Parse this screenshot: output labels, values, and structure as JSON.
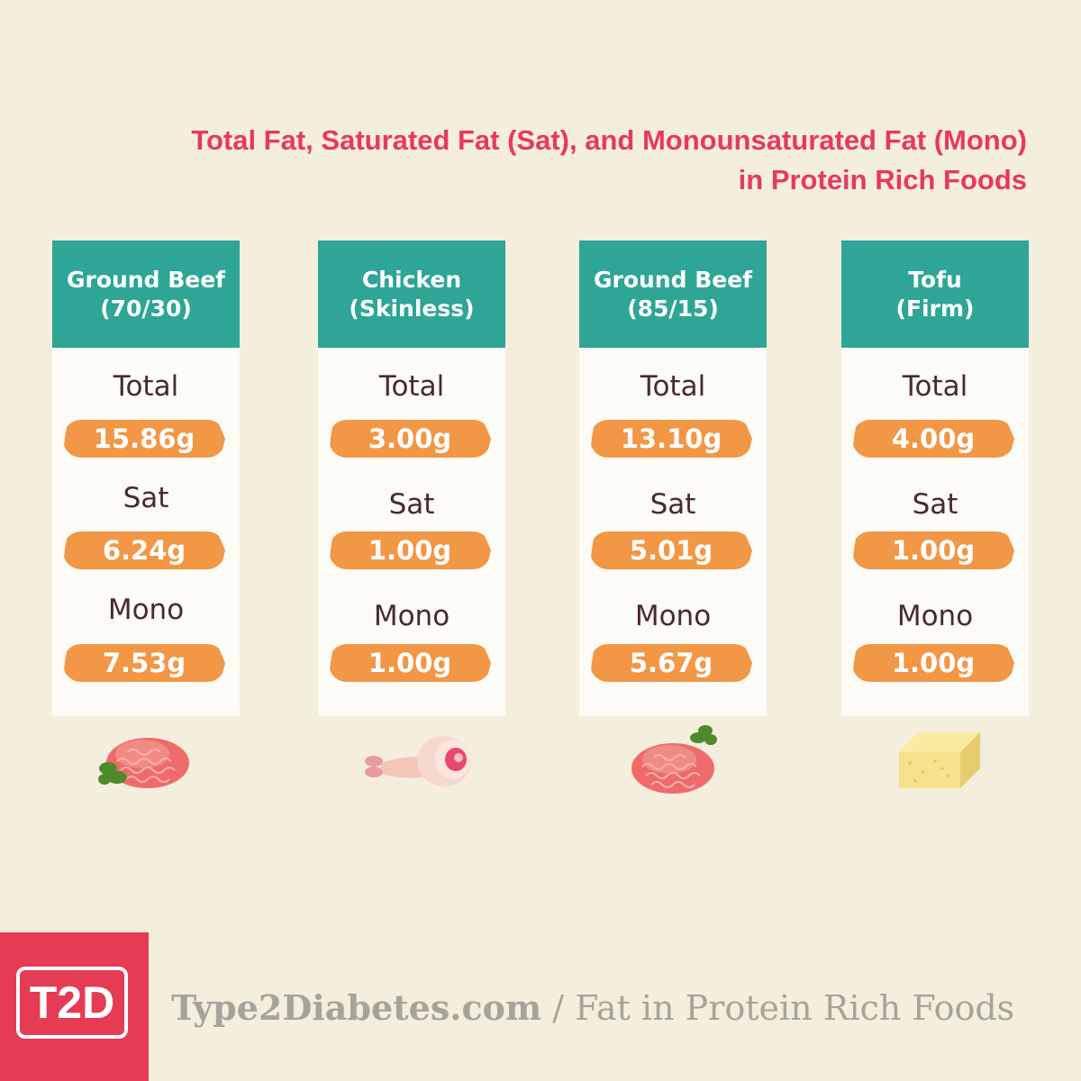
{
  "title": {
    "line1": "Total Fat, Saturated Fat (Sat), and Monounsaturated Fat (Mono)",
    "line2": "in Protein Rich Foods"
  },
  "labels": {
    "total": "Total",
    "sat": "Sat",
    "mono": "Mono"
  },
  "cards": [
    {
      "name_line1": "Ground Beef",
      "name_line2": "(70/30)",
      "total": "15.86g",
      "sat": "6.24g",
      "mono": "7.53g",
      "icon": "ground-beef-icon"
    },
    {
      "name_line1": "Chicken",
      "name_line2": "(Skinless)",
      "total": "3.00g",
      "sat": "1.00g",
      "mono": "1.00g",
      "icon": "chicken-leg-icon"
    },
    {
      "name_line1": "Ground Beef",
      "name_line2": "(85/15)",
      "total": "13.10g",
      "sat": "5.01g",
      "mono": "5.67g",
      "icon": "ground-beef-icon"
    },
    {
      "name_line1": "Tofu",
      "name_line2": "(Firm)",
      "total": "4.00g",
      "sat": "1.00g",
      "mono": "1.00g",
      "icon": "tofu-icon"
    }
  ],
  "footer": {
    "logo": "T2D",
    "site": "Type2Diabetes.com",
    "separator": " / ",
    "page": "Fat in Protein Rich Foods"
  },
  "colors": {
    "background": "#f4eedd",
    "title": "#e8395b",
    "header": "#2ea595",
    "pill": "#f29745",
    "logo": "#e53b55"
  }
}
